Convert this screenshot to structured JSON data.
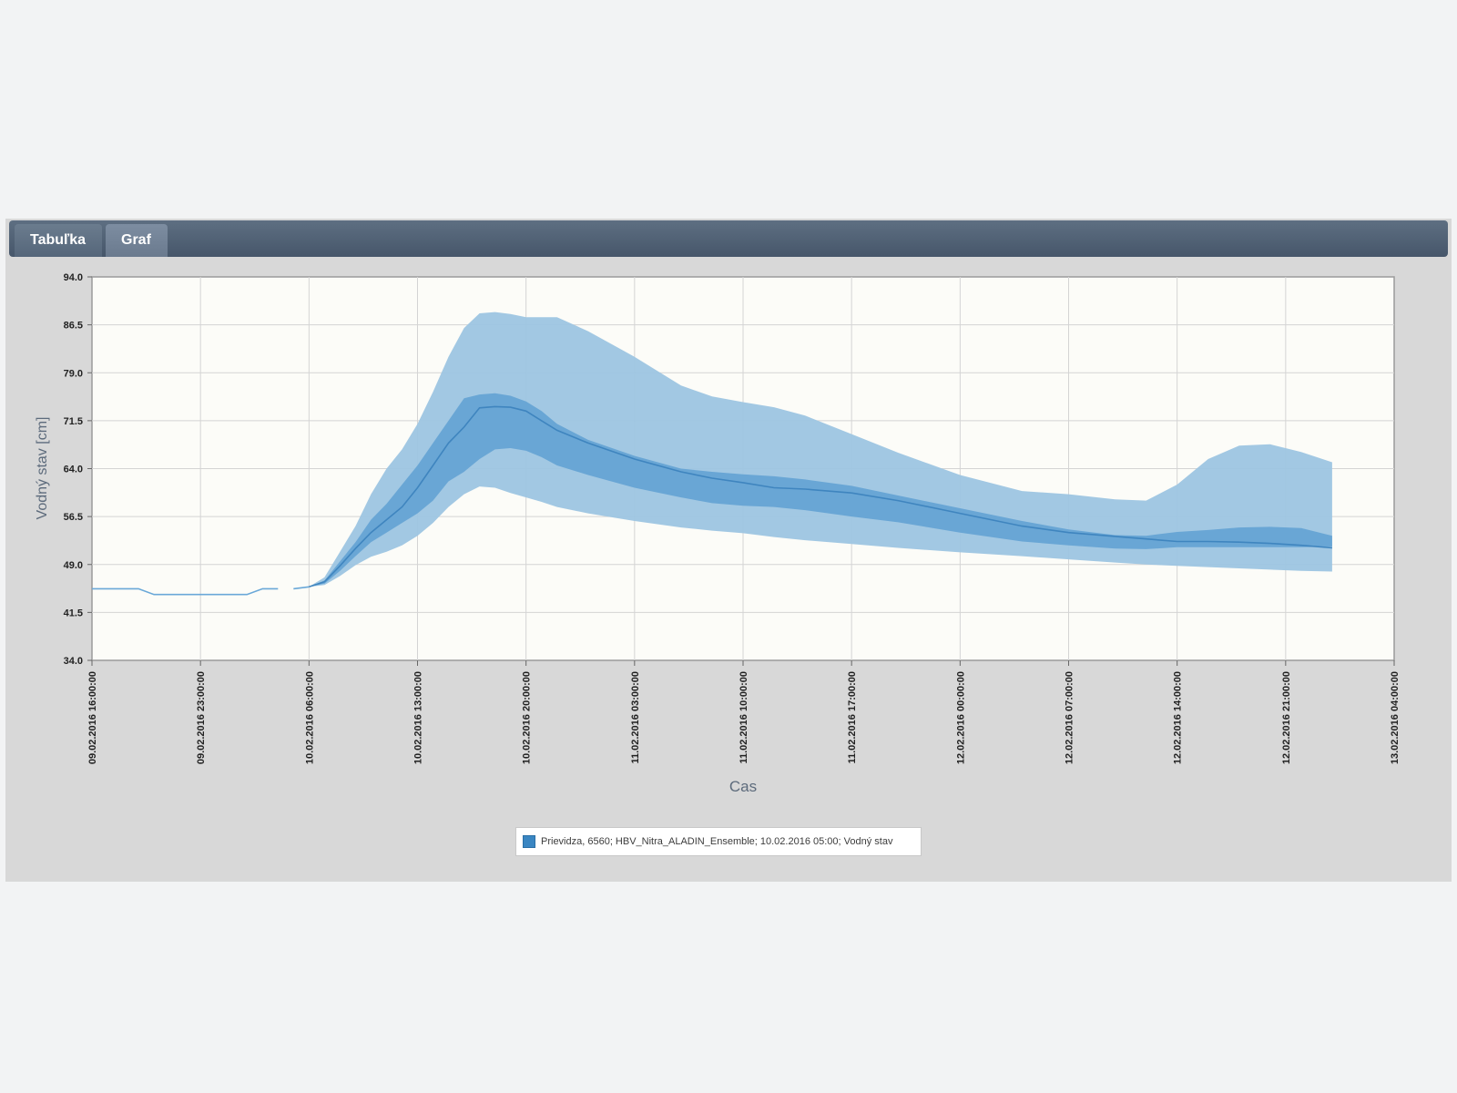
{
  "tabs": [
    {
      "label": "Tabuľka",
      "active": false
    },
    {
      "label": "Graf",
      "active": true
    }
  ],
  "colors": {
    "outer_band": "#9dc5e2",
    "inner_band": "#5fa0d2",
    "median_line": "#3f85bf",
    "observed_line": "#6aa8d8",
    "plot_bg": "#fcfcf8",
    "grid": "#d4d4d4",
    "legend_swatch": "#3a86c2"
  },
  "chart_data": {
    "type": "area",
    "xlabel": "Cas",
    "ylabel": "Vodný stav [cm]",
    "x_unit": "hours",
    "x_ticks": [
      "09.02.2016 16:00:00",
      "09.02.2016 23:00:00",
      "10.02.2016 06:00:00",
      "10.02.2016 13:00:00",
      "10.02.2016 20:00:00",
      "11.02.2016 03:00:00",
      "11.02.2016 10:00:00",
      "11.02.2016 17:00:00",
      "12.02.2016 00:00:00",
      "12.02.2016 07:00:00",
      "12.02.2016 14:00:00",
      "12.02.2016 21:00:00",
      "13.02.2016 04:00:00"
    ],
    "xlim": [
      "09.02.2016 16:00:00",
      "13.02.2016 04:00:00"
    ],
    "y_ticks": [
      "94.0",
      "86.5",
      "79.0",
      "71.5",
      "64.0",
      "56.5",
      "49.0",
      "41.5",
      "34.0"
    ],
    "ylim": [
      34.0,
      94.0
    ],
    "grid": true,
    "legend_position": "bottom",
    "legend": [
      "Prievidza, 6560; HBV_Nitra_ALADIN_Ensemble; 10.02.2016 05:00; Vodný stav"
    ],
    "observed": {
      "segments": [
        {
          "x": [
            "09.02.2016 16:00",
            "09.02.2016 19:00",
            "09.02.2016 20:00",
            "09.02.2016 23:00",
            "10.02.2016 02:00",
            "10.02.2016 03:00",
            "10.02.2016 04:00"
          ],
          "y": [
            45.2,
            45.2,
            44.3,
            44.3,
            44.3,
            45.2,
            45.2
          ]
        },
        {
          "x": [
            "10.02.2016 05:00",
            "10.02.2016 06:00"
          ],
          "y": [
            45.2,
            45.5
          ]
        }
      ]
    },
    "forecast": {
      "x": [
        "10.02.2016 06:00",
        "10.02.2016 07:00",
        "10.02.2016 08:00",
        "10.02.2016 09:00",
        "10.02.2016 10:00",
        "10.02.2016 11:00",
        "10.02.2016 12:00",
        "10.02.2016 13:00",
        "10.02.2016 14:00",
        "10.02.2016 15:00",
        "10.02.2016 16:00",
        "10.02.2016 17:00",
        "10.02.2016 18:00",
        "10.02.2016 19:00",
        "10.02.2016 20:00",
        "10.02.2016 21:00",
        "10.02.2016 22:00",
        "11.02.2016 00:00",
        "11.02.2016 03:00",
        "11.02.2016 06:00",
        "11.02.2016 08:00",
        "11.02.2016 10:00",
        "11.02.2016 12:00",
        "11.02.2016 14:00",
        "11.02.2016 17:00",
        "11.02.2016 20:00",
        "12.02.2016 00:00",
        "12.02.2016 04:00",
        "12.02.2016 07:00",
        "12.02.2016 10:00",
        "12.02.2016 12:00",
        "12.02.2016 14:00",
        "12.02.2016 16:00",
        "12.02.2016 18:00",
        "12.02.2016 20:00",
        "12.02.2016 22:00",
        "13.02.2016 00:00"
      ],
      "max": [
        45.5,
        47.0,
        51.0,
        55.0,
        60.0,
        64.0,
        67.0,
        71.0,
        76.0,
        81.5,
        86.0,
        88.3,
        88.5,
        88.2,
        87.7,
        87.7,
        87.7,
        85.5,
        81.5,
        77.0,
        75.3,
        74.4,
        73.6,
        72.3,
        69.4,
        66.5,
        63.0,
        60.5,
        60.0,
        59.2,
        59.0,
        61.5,
        65.5,
        67.6,
        67.8,
        66.6,
        65.0
      ],
      "q75": [
        45.5,
        46.5,
        49.5,
        52.5,
        56.0,
        58.5,
        61.5,
        64.5,
        68.0,
        71.5,
        75.0,
        75.6,
        75.8,
        75.4,
        74.5,
        73.0,
        71.0,
        68.5,
        66.0,
        64.0,
        63.5,
        63.1,
        62.8,
        62.3,
        61.3,
        59.8,
        57.8,
        55.8,
        54.5,
        53.6,
        53.5,
        54.1,
        54.4,
        54.8,
        54.9,
        54.7,
        53.5
      ],
      "median": [
        45.5,
        46.3,
        48.8,
        51.5,
        54.0,
        56.0,
        58.0,
        61.0,
        64.5,
        68.0,
        70.5,
        73.5,
        73.7,
        73.6,
        73.0,
        71.5,
        70.0,
        68.0,
        65.5,
        63.5,
        62.5,
        61.8,
        61.0,
        60.8,
        60.2,
        59.0,
        57.0,
        55.0,
        54.0,
        53.4,
        53.0,
        52.6,
        52.6,
        52.5,
        52.3,
        52.0,
        51.6
      ],
      "q25": [
        45.5,
        46.0,
        48.0,
        50.3,
        52.5,
        54.0,
        55.5,
        57.0,
        59.0,
        62.0,
        63.5,
        65.5,
        67.0,
        67.2,
        66.8,
        65.8,
        64.5,
        63.0,
        61.0,
        59.5,
        58.6,
        58.2,
        58.0,
        57.5,
        56.5,
        55.6,
        54.0,
        52.6,
        52.0,
        51.5,
        51.4,
        51.7,
        51.7,
        51.7,
        51.7,
        51.7,
        51.8
      ],
      "min": [
        45.5,
        45.8,
        47.2,
        48.9,
        50.2,
        51.0,
        52.0,
        53.5,
        55.5,
        58.0,
        60.0,
        61.2,
        61.0,
        60.2,
        59.5,
        58.8,
        58.0,
        57.0,
        55.8,
        54.8,
        54.3,
        53.9,
        53.3,
        52.8,
        52.2,
        51.6,
        50.9,
        50.3,
        49.8,
        49.3,
        49.0,
        48.8,
        48.6,
        48.4,
        48.2,
        48.0,
        47.9
      ]
    }
  }
}
